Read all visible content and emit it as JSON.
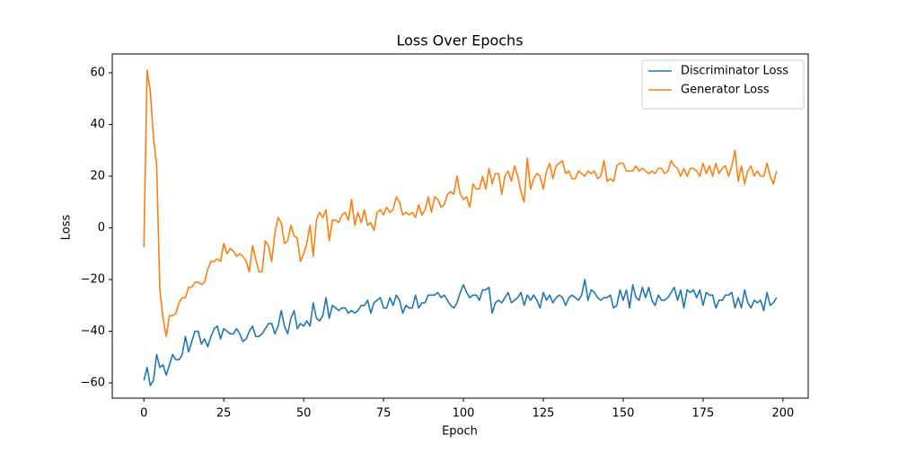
{
  "chart_data": {
    "type": "line",
    "title": "Loss Over Epochs",
    "x_label": "Epoch",
    "y_label": "Loss",
    "x": [
      0,
      1,
      2,
      3,
      4,
      5,
      6,
      7,
      8,
      9,
      10,
      11,
      12,
      13,
      14,
      15,
      16,
      17,
      18,
      19,
      20,
      21,
      22,
      23,
      24,
      25,
      26,
      27,
      28,
      29,
      30,
      31,
      32,
      33,
      34,
      35,
      36,
      37,
      38,
      39,
      40,
      41,
      42,
      43,
      44,
      45,
      46,
      47,
      48,
      49,
      50,
      51,
      52,
      53,
      54,
      55,
      56,
      57,
      58,
      59,
      60,
      61,
      62,
      63,
      64,
      65,
      66,
      67,
      68,
      69,
      70,
      71,
      72,
      73,
      74,
      75,
      76,
      77,
      78,
      79,
      80,
      81,
      82,
      83,
      84,
      85,
      86,
      87,
      88,
      89,
      90,
      91,
      92,
      93,
      94,
      95,
      96,
      97,
      98,
      99,
      100,
      101,
      102,
      103,
      104,
      105,
      106,
      107,
      108,
      109,
      110,
      111,
      112,
      113,
      114,
      115,
      116,
      117,
      118,
      119,
      120,
      121,
      122,
      123,
      124,
      125,
      126,
      127,
      128,
      129,
      130,
      131,
      132,
      133,
      134,
      135,
      136,
      137,
      138,
      139,
      140,
      141,
      142,
      143,
      144,
      145,
      146,
      147,
      148,
      149,
      150,
      151,
      152,
      153,
      154,
      155,
      156,
      157,
      158,
      159,
      160,
      161,
      162,
      163,
      164,
      165,
      166,
      167,
      168,
      169,
      170,
      171,
      172,
      173,
      174,
      175,
      176,
      177,
      178,
      179,
      180,
      181,
      182,
      183,
      184,
      185,
      186,
      187,
      188,
      189,
      190,
      191,
      192,
      193,
      194,
      195,
      196,
      197,
      198
    ],
    "series": [
      {
        "name": "Discriminator Loss",
        "color": "#1f77b4",
        "values": [
          -59,
          -54,
          -61,
          -59,
          -49,
          -54,
          -53,
          -57,
          -53,
          -49,
          -51,
          -51,
          -49,
          -42,
          -48,
          -44,
          -40,
          -40,
          -45,
          -43,
          -46,
          -42,
          -39,
          -38,
          -43,
          -39,
          -40,
          -41,
          -41,
          -39,
          -41,
          -44,
          -43,
          -40,
          -38,
          -42,
          -42,
          -41,
          -39,
          -37,
          -37,
          -41,
          -38,
          -32,
          -38,
          -41,
          -35,
          -32,
          -39,
          -37,
          -38,
          -36,
          -38,
          -29,
          -35,
          -36,
          -34,
          -27,
          -35,
          -30,
          -31,
          -32,
          -31,
          -31,
          -33,
          -32,
          -33,
          -32,
          -30,
          -30,
          -28,
          -33,
          -29,
          -28,
          -27,
          -31,
          -31,
          -27,
          -30,
          -26,
          -28,
          -33,
          -30,
          -31,
          -31,
          -26,
          -31,
          -29,
          -29,
          -26,
          -26,
          -26,
          -25,
          -27,
          -26,
          -28,
          -30,
          -31,
          -29,
          -25,
          -22,
          -25,
          -27,
          -26,
          -26,
          -28,
          -24,
          -24,
          -23,
          -33,
          -29,
          -28,
          -29,
          -27,
          -25,
          -29,
          -28,
          -27,
          -25,
          -30,
          -26,
          -28,
          -26,
          -28,
          -31,
          -25,
          -28,
          -26,
          -29,
          -27,
          -26,
          -27,
          -30,
          -27,
          -26,
          -27,
          -28,
          -26,
          -20,
          -28,
          -24,
          -25,
          -27,
          -28,
          -27,
          -27,
          -26,
          -31,
          -30,
          -24,
          -28,
          -24,
          -31,
          -22,
          -27,
          -28,
          -23,
          -27,
          -23,
          -28,
          -30,
          -26,
          -28,
          -28,
          -27,
          -25,
          -23,
          -28,
          -24,
          -31,
          -24,
          -25,
          -24,
          -27,
          -24,
          -30,
          -25,
          -26,
          -26,
          -31,
          -28,
          -28,
          -26,
          -26,
          -25,
          -31,
          -27,
          -31,
          -24,
          -29,
          -31,
          -28,
          -29,
          -28,
          -32,
          -25,
          -30,
          -29,
          -27
        ]
      },
      {
        "name": "Generator Loss",
        "color": "#ff7f0e",
        "values": [
          -7.5,
          61,
          53,
          35,
          24,
          -24,
          -35,
          -42,
          -34,
          -34,
          -33,
          -29,
          -27,
          -27,
          -23,
          -23,
          -21,
          -21,
          -22,
          -21,
          -16,
          -13,
          -13,
          -12,
          -13,
          -6,
          -10,
          -8,
          -9,
          -11,
          -10,
          -11,
          -13,
          -17,
          -7,
          -12,
          -17,
          -17,
          -5,
          -7,
          -13,
          -2,
          4,
          2,
          -6,
          -5,
          1,
          -3,
          -4,
          -13,
          -10,
          -6,
          1,
          -11,
          3,
          6,
          4,
          7,
          -5,
          3,
          3,
          2,
          5,
          6,
          3,
          11,
          1,
          6,
          2,
          7,
          1,
          2,
          -1,
          6,
          7,
          5,
          8,
          6,
          7,
          12,
          10,
          5,
          6,
          5,
          6,
          4,
          9,
          5,
          7,
          12,
          6,
          12,
          11,
          8,
          9,
          13,
          14,
          13,
          20,
          13,
          11,
          12,
          8,
          17,
          15,
          15,
          20,
          15,
          23,
          17,
          21,
          21,
          13,
          20,
          22,
          18,
          24,
          20,
          14,
          10,
          27,
          15,
          19,
          21,
          20,
          15,
          22,
          25,
          19,
          24,
          25,
          26,
          21,
          22,
          19,
          19,
          22,
          21,
          20,
          22,
          21,
          22,
          19,
          20,
          26,
          18,
          19,
          18,
          24,
          25,
          25,
          22,
          22,
          22,
          24,
          22,
          23,
          22,
          21,
          22,
          21,
          23,
          23,
          21,
          22,
          26,
          24,
          23,
          20,
          23,
          20,
          23,
          23,
          22,
          20,
          25,
          21,
          24,
          20,
          25,
          21,
          23,
          24,
          20,
          24,
          30,
          18,
          24,
          17,
          22,
          24,
          20,
          22,
          20,
          20,
          25,
          20,
          17,
          22
        ]
      }
    ],
    "xlim": [
      -9.9,
      207.9
    ],
    "ylim": [
      -65.9,
      67.3
    ],
    "xticks": [
      0,
      25,
      50,
      75,
      100,
      125,
      150,
      175,
      200
    ],
    "yticks": [
      {
        "value": -60,
        "label": "−60"
      },
      {
        "value": -40,
        "label": "−40"
      },
      {
        "value": -20,
        "label": "−20"
      },
      0,
      20,
      40,
      60
    ],
    "legend": "upper right"
  }
}
